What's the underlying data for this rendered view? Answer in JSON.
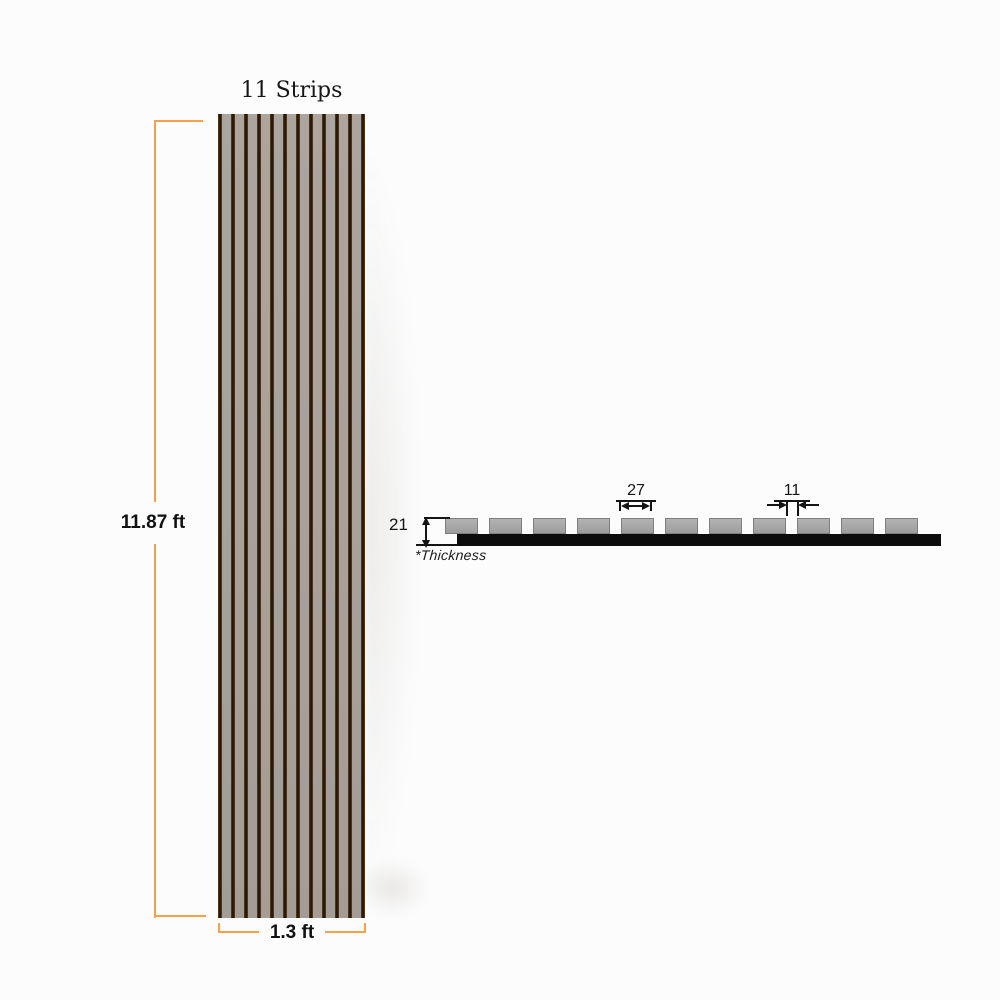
{
  "front_view": {
    "strips_label": "11 Strips",
    "strip_count": 11,
    "height_label": "11.87 ft",
    "width_label": "1.3 ft"
  },
  "cross_section": {
    "slat_count": 11,
    "slat_width_label": "27",
    "gap_label": "11",
    "thickness_label": "21",
    "thickness_caption": "*Thickness"
  },
  "colors": {
    "accent_orange": "#f3a24a",
    "ink": "#141414",
    "strip_gray": "#a8a29b",
    "groove_dark": "#201509",
    "groove_edge": "#7a4e24",
    "section_slat_gray": "#a5a5a5",
    "backing_black": "#0c0c0c",
    "background": "#fcfcfc"
  }
}
